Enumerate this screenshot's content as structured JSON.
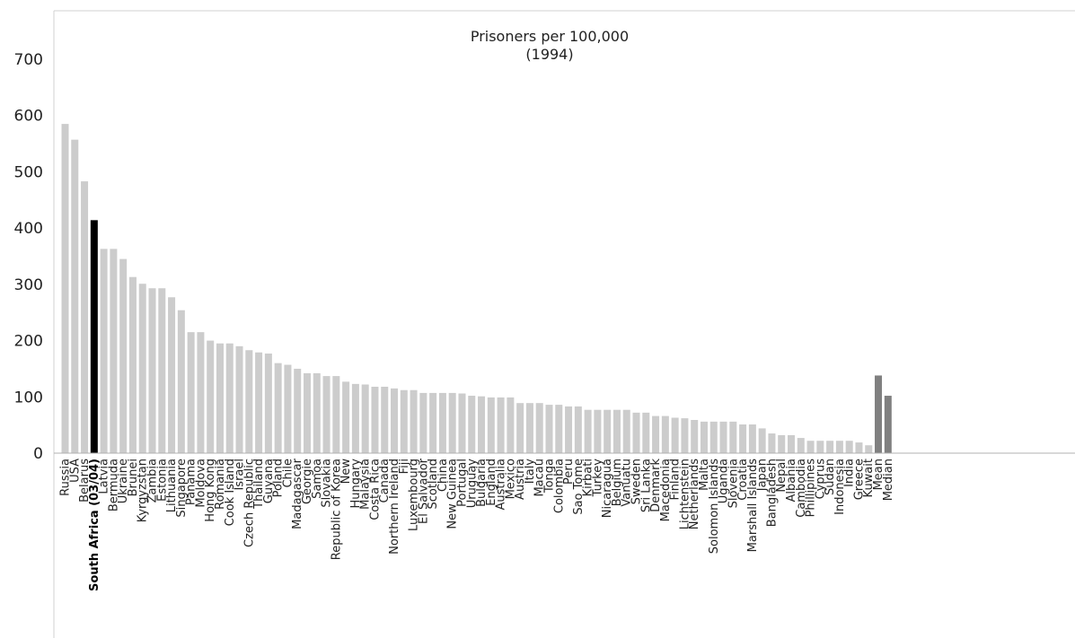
{
  "chart_data": {
    "type": "bar",
    "title": "Prisoners per 100,000",
    "subtitle": "(1994)",
    "xlabel": "",
    "ylabel": "",
    "ylim": [
      0,
      700
    ],
    "yticks": [
      "0",
      "100",
      "200",
      "300",
      "400",
      "500",
      "600",
      "700"
    ],
    "grid": false,
    "colors": {
      "default": "#cccccc",
      "highlight": "#000000",
      "summary": "#808080"
    },
    "highlight_categories": [
      "South Africa (03/04)"
    ],
    "summary_categories": [
      "Mean",
      "Median"
    ],
    "categories": [
      "Russia",
      "USA",
      "Belarus",
      "South Africa (03/04)",
      "Latvia",
      "Bermuda",
      "Ukraine",
      "Brunei",
      "Kyrgyzstan",
      "Zambia",
      "Estonia",
      "Lithuania",
      "Singapore",
      "Panama",
      "Moldova",
      "Hong Kong",
      "Romania",
      "Cook Island",
      "Israel",
      "Czech Republic",
      "Thailand",
      "Guyana",
      "Poland",
      "Chile",
      "Madagascar",
      "Georgie",
      "Samoa",
      "Slovakia",
      "Republic of Korea",
      "New",
      "Hungary",
      "Malaysia",
      "Costa Rica",
      "Canada",
      "Northern Ireland",
      "Fiji",
      "Luxembourg",
      "El Salvador",
      "Scotland",
      "China",
      "New Guinea",
      "Portugal",
      "Uruguay",
      "Bulgaria",
      "England",
      "Australia",
      "Mexico",
      "Austria",
      "Italy",
      "Macau",
      "Tonga",
      "Colombia",
      "Peru",
      "Sao Tome",
      "Kirbati",
      "Turkey",
      "Nicaragua",
      "Belgium",
      "Vanuatu",
      "Sweden",
      "Sri Lanka",
      "Denmark",
      "Macedonia",
      "Finland",
      "Lichtenstein",
      "Netherlands",
      "Malta",
      "Solomon Islands",
      "Uganda",
      "Slovenia",
      "Croatia",
      "Marshall Islands",
      "Japan",
      "Bangladesh",
      "Nepal",
      "Albania",
      "Cambodia",
      "Phillipines",
      "Cyprus",
      "Sudan",
      "Indonesia",
      "India",
      "Greece",
      "Kuwait",
      "Mean",
      "Median"
    ],
    "values": [
      585,
      557,
      483,
      414,
      363,
      363,
      345,
      313,
      301,
      293,
      293,
      277,
      254,
      215,
      215,
      200,
      195,
      195,
      190,
      183,
      179,
      177,
      160,
      157,
      150,
      142,
      142,
      137,
      137,
      127,
      123,
      122,
      118,
      118,
      115,
      112,
      112,
      107,
      107,
      107,
      107,
      106,
      102,
      101,
      99,
      99,
      99,
      89,
      89,
      89,
      86,
      86,
      83,
      83,
      77,
      77,
      77,
      77,
      77,
      72,
      72,
      66,
      66,
      63,
      62,
      59,
      56,
      56,
      56,
      56,
      51,
      51,
      44,
      35,
      32,
      32,
      27,
      22,
      22,
      22,
      22,
      22,
      19,
      14,
      138,
      102
    ]
  }
}
